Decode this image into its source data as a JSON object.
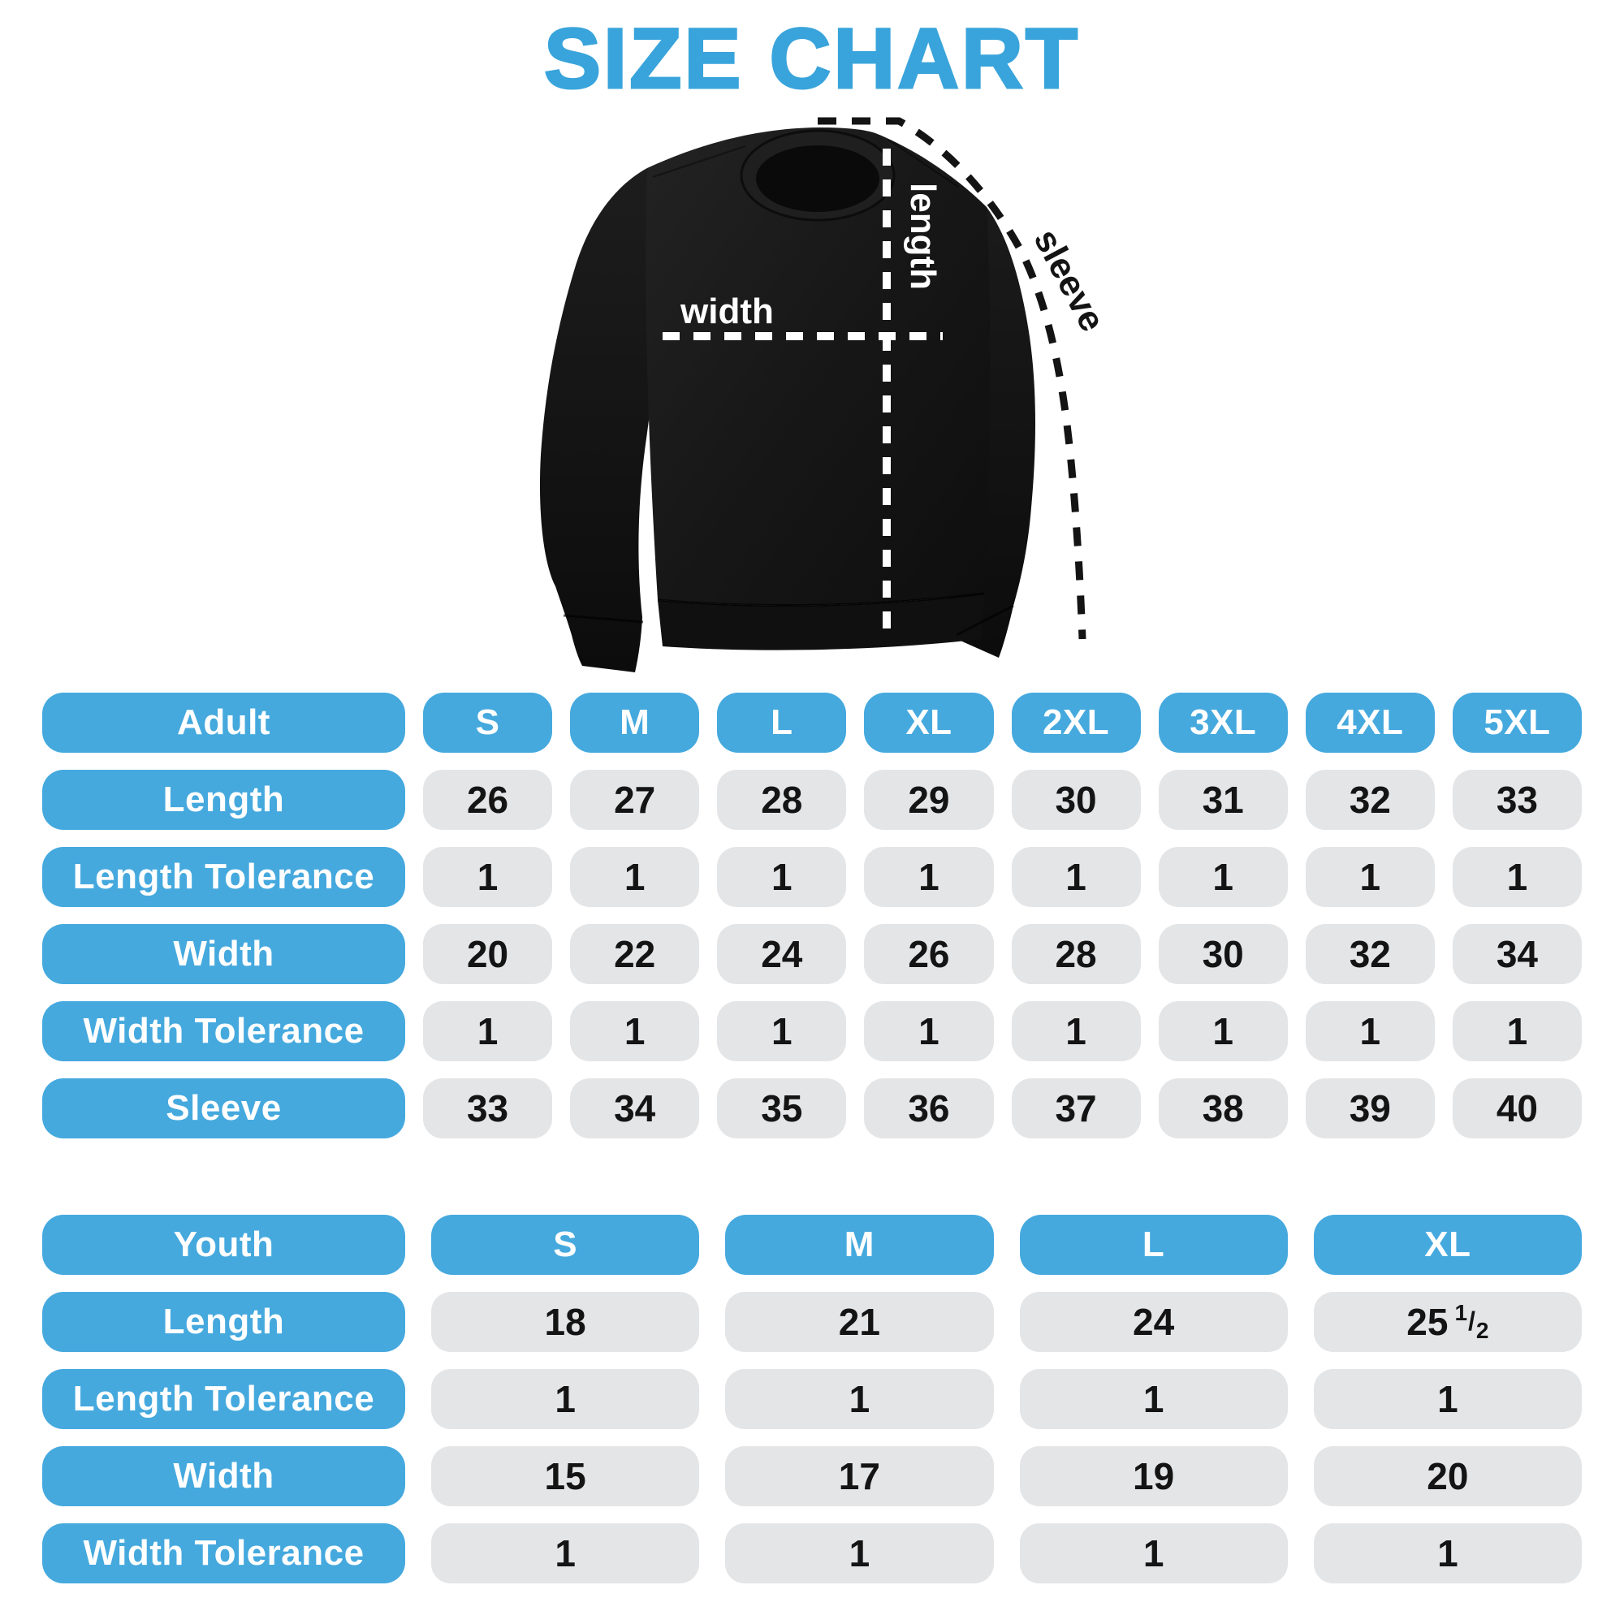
{
  "title": "SIZE CHART",
  "colors": {
    "accent_blue": "#45A9DE",
    "title_blue": "#39A4DB",
    "cell_gray": "#E4E5E7",
    "shirt_black": "#161616",
    "measure_line_white": "#FFFFFF",
    "measure_line_black": "#141414",
    "value_text": "#141414"
  },
  "diagram": {
    "length_label": "length",
    "width_label": "width",
    "sleeve_label": "sleeve"
  },
  "adult_table": {
    "header": {
      "label": "Adult",
      "sizes": [
        "S",
        "M",
        "L",
        "XL",
        "2XL",
        "3XL",
        "4XL",
        "5XL"
      ]
    },
    "rows": [
      {
        "label": "Length",
        "values": [
          "26",
          "27",
          "28",
          "29",
          "30",
          "31",
          "32",
          "33"
        ]
      },
      {
        "label": "Length Tolerance",
        "values": [
          "1",
          "1",
          "1",
          "1",
          "1",
          "1",
          "1",
          "1"
        ]
      },
      {
        "label": "Width",
        "values": [
          "20",
          "22",
          "24",
          "26",
          "28",
          "30",
          "32",
          "34"
        ]
      },
      {
        "label": "Width Tolerance",
        "values": [
          "1",
          "1",
          "1",
          "1",
          "1",
          "1",
          "1",
          "1"
        ]
      },
      {
        "label": "Sleeve",
        "values": [
          "33",
          "34",
          "35",
          "36",
          "37",
          "38",
          "39",
          "40"
        ]
      }
    ]
  },
  "youth_table": {
    "header": {
      "label": "Youth",
      "sizes": [
        "S",
        "M",
        "L",
        "XL"
      ]
    },
    "rows": [
      {
        "label": "Length",
        "values": [
          "18",
          "21",
          "24",
          "25 1/2"
        ]
      },
      {
        "label": "Length Tolerance",
        "values": [
          "1",
          "1",
          "1",
          "1"
        ]
      },
      {
        "label": "Width",
        "values": [
          "15",
          "17",
          "19",
          "20"
        ]
      },
      {
        "label": "Width Tolerance",
        "values": [
          "1",
          "1",
          "1",
          "1"
        ]
      }
    ]
  }
}
